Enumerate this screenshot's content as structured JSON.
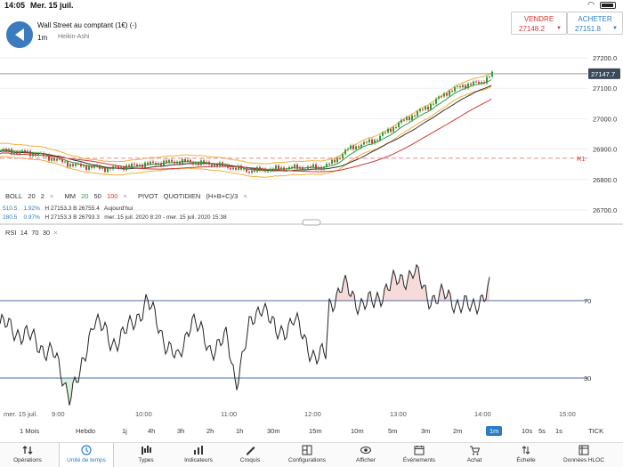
{
  "status": {
    "time": "14:05",
    "date": "Mer. 15 juil."
  },
  "header": {
    "instrument": "Wall Street au comptant (1€) (-)",
    "timeframe": "1m",
    "chart_type": "Heikin-Ashi"
  },
  "sell": {
    "label": "VENDRE",
    "price": "27148.2"
  },
  "buy": {
    "label": "ACHETER",
    "price": "27151.8"
  },
  "price_axis": {
    "ticks": [
      "27200.0",
      "27100.0",
      "27000.0",
      "26900.0",
      "26800.0",
      "26700.0"
    ],
    "current_price": "27147.7",
    "pivot_label": "R1"
  },
  "indicators": {
    "boll": "BOLL",
    "boll_p1": "20",
    "boll_p2": "2",
    "mm": "MM",
    "mm_20": "20",
    "mm_50": "50",
    "mm_100": "100",
    "pivot": "PIVOT",
    "pivot_type": "QUOTIDIEN",
    "pivot_formula": "(H+B+C)/3",
    "close": "×"
  },
  "bb_info": {
    "row1_change": "510.5",
    "row1_pct": "1.92%",
    "row1_hl": "H 27153.3   B 26755.4",
    "row1_label": "Aujourd'hui",
    "row2_change": "280.5",
    "row2_pct": "0.97%",
    "row2_hl": "H 27153.3   B 26793.3",
    "row2_label": "mer. 15 juil. 2020 8:20 - mer. 15 juil. 2020 15:38"
  },
  "rsi": {
    "label": "RSI",
    "p1": "14",
    "p2": "70",
    "p3": "30",
    "upper": "70",
    "lower": "30"
  },
  "xaxis": {
    "date": "mer. 15 juil.",
    "labels": [
      "9:00",
      "10:00",
      "11:00",
      "12:00",
      "13:00",
      "14:00",
      "15:00"
    ]
  },
  "periods": [
    "1 Mois",
    "Hebdo",
    "1j",
    "4h",
    "3h",
    "2h",
    "1h",
    "30m",
    "15m",
    "10m",
    "5m",
    "3m",
    "2m",
    "1m",
    "10s",
    "5s",
    "1s",
    "TICK"
  ],
  "active_period": "1m",
  "toolbar": [
    "Opérations",
    "Unité de temps",
    "Types",
    "Indicateurs",
    "Croquis",
    "Configurations",
    "Afficher",
    "Événements",
    "Achat",
    "Échelle",
    "Données HLOC"
  ],
  "colors": {
    "accent": "#2b7cc4",
    "sell": "#d23a3a",
    "up": "#2e9e3a",
    "down": "#d23a3a",
    "pivot": "#e88b8b"
  }
}
